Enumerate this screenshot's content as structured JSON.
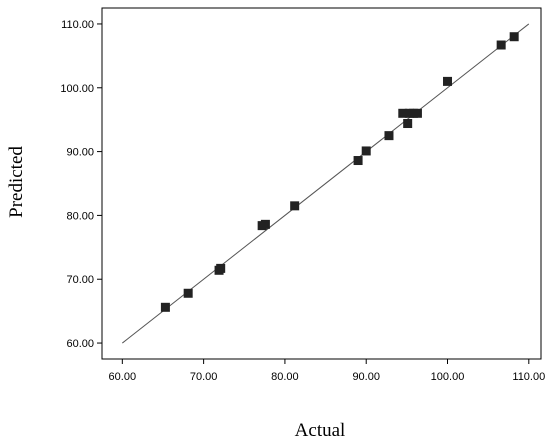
{
  "chart_data": {
    "type": "scatter",
    "title": "",
    "xlabel": "Actual",
    "ylabel": "Predicted",
    "xlim": [
      57.5,
      111.5
    ],
    "ylim": [
      57.5,
      112.5
    ],
    "x_ticks": [
      "60.00",
      "70.00",
      "80.00",
      "90.00",
      "100.00",
      "110.00"
    ],
    "y_ticks": [
      "60.00",
      "70.00",
      "80.00",
      "90.00",
      "100.00",
      "110.00"
    ],
    "x_tick_values": [
      60,
      70,
      80,
      90,
      100,
      110
    ],
    "y_tick_values": [
      60,
      70,
      80,
      90,
      100,
      110
    ],
    "reference_line": {
      "from": [
        60,
        60
      ],
      "to": [
        110,
        110
      ]
    },
    "grid": false,
    "legend": "none",
    "marker_color": "#222222",
    "line_color": "#555555",
    "points": [
      {
        "x": 65.3,
        "y": 65.6
      },
      {
        "x": 68.1,
        "y": 67.8
      },
      {
        "x": 71.9,
        "y": 71.4
      },
      {
        "x": 72.1,
        "y": 71.7
      },
      {
        "x": 77.2,
        "y": 78.4
      },
      {
        "x": 77.6,
        "y": 78.6
      },
      {
        "x": 81.2,
        "y": 81.5
      },
      {
        "x": 89.0,
        "y": 88.6
      },
      {
        "x": 90.0,
        "y": 90.1
      },
      {
        "x": 92.8,
        "y": 92.5
      },
      {
        "x": 94.5,
        "y": 96.0
      },
      {
        "x": 95.1,
        "y": 94.4
      },
      {
        "x": 95.3,
        "y": 96.0
      },
      {
        "x": 95.8,
        "y": 96.0
      },
      {
        "x": 96.3,
        "y": 96.0
      },
      {
        "x": 100.0,
        "y": 101.0
      },
      {
        "x": 106.6,
        "y": 106.7
      },
      {
        "x": 108.2,
        "y": 108.0
      }
    ]
  }
}
